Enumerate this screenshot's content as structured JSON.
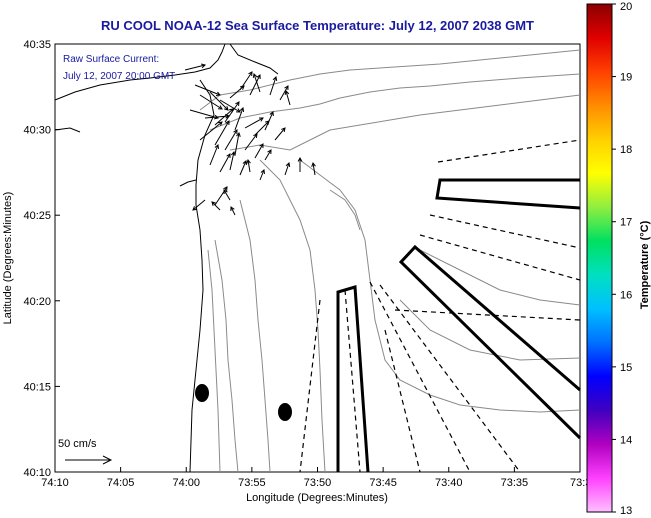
{
  "title": "RU COOL  NOAA-12  Sea Surface Temperature:  July 12, 2007 2038 GMT",
  "annotation": {
    "line1": "Raw Surface Current:",
    "line2": "July 12, 2007 20:00 GMT",
    "color": "#1a1aa0"
  },
  "axes": {
    "xlabel": "Longitude (Degrees:Minutes)",
    "ylabel": "Latitude (Degrees:Minutes)",
    "xticks": [
      "74:10",
      "74:05",
      "74:00",
      "73:55",
      "73:50",
      "73:45",
      "73:40",
      "73:35",
      "73:3"
    ],
    "yticks": [
      "40:35",
      "40:30",
      "40:25",
      "40:20",
      "40:15",
      "40:10"
    ]
  },
  "scale_bar": {
    "label": "50 cm/s"
  },
  "colorbar": {
    "label": "Temperature (°C)",
    "ticks": [
      "20",
      "19",
      "18",
      "17",
      "16",
      "15",
      "14",
      "13"
    ],
    "min": 13,
    "max": 20,
    "colors": [
      "#8b0000",
      "#e00000",
      "#ff4000",
      "#ff8c00",
      "#ffd000",
      "#ffff00",
      "#90ee40",
      "#00e060",
      "#00e0c0",
      "#00c0ff",
      "#0070ff",
      "#0000ff",
      "#4000c0",
      "#b000c0",
      "#ff40ff",
      "#ffc0ff"
    ]
  }
}
